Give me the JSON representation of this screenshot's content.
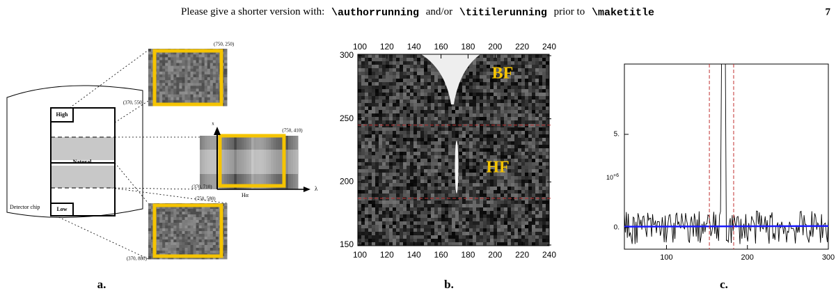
{
  "header": {
    "parts": [
      "Please give a shorter version with:",
      "\\authorrunning",
      "and/or",
      "\\titilerunning",
      "prior to",
      "\\maketitle"
    ],
    "page_number": "7"
  },
  "panel_a": {
    "caption": "a.",
    "top_right": "(750, 250)",
    "top_left": "(370, 550)",
    "mid_right": "(750, 410)",
    "mid_left": "(370, 710)",
    "mid_low_right": "(750, 580)",
    "bottom_left": "(370, 880)",
    "high": "High",
    "natural": "Natural",
    "low": "Low",
    "chip": "Detector chip",
    "halpha": "Hα",
    "lambda": "λ",
    "x_axis": "x"
  },
  "panel_b": {
    "caption": "b.",
    "xlim": [
      100,
      240
    ],
    "ylim": [
      150,
      300
    ],
    "xticks": [
      100,
      120,
      140,
      160,
      180,
      200,
      220,
      240
    ],
    "yticks": [
      150,
      200,
      250,
      300
    ],
    "hlines": [
      245,
      187
    ],
    "annotations": [
      "BF",
      "HF"
    ]
  },
  "panel_c": {
    "caption": "c.",
    "xlim": [
      48,
      300
    ],
    "ylim": [
      -1.16,
      8.77
    ],
    "xticks": [
      100,
      200,
      300
    ],
    "yticks": [
      {
        "value": 0,
        "label": "0."
      },
      {
        "value": 5,
        "label": "5."
      }
    ],
    "multiplier_base": "10",
    "multiplier_exp": "+6",
    "vlines": [
      153,
      183
    ]
  }
}
